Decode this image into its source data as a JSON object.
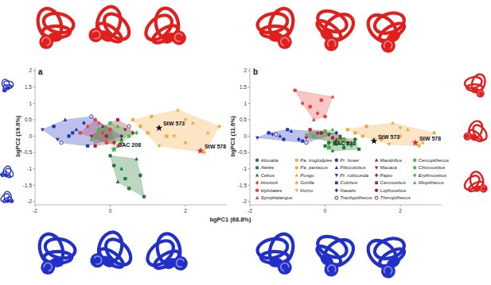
{
  "chart_data": [
    {
      "type": "scatter",
      "title": "a",
      "xlabel": "bgPC1 (68.8%)",
      "ylabel": "bgPC2 (19.6%)",
      "xlim": [
        -2,
        3.1
      ],
      "ylim": [
        -2.1,
        2.1
      ],
      "xticks": [
        -2,
        0,
        2
      ],
      "yticks": [
        -2,
        -1.5,
        -1,
        -0.5,
        0,
        0.5,
        1,
        1.5,
        2
      ],
      "series": [
        {
          "name": "Alouatta",
          "color": "#1e7a32",
          "marker": "circle",
          "x": [
            0.1,
            0.5,
            0.8
          ],
          "values": [
            -0.9,
            -1.6,
            -1.2
          ]
        },
        {
          "name": "Ateles",
          "color": "#1e7a32",
          "marker": "square",
          "x": [
            0.0,
            0.4,
            0.9
          ],
          "values": [
            -0.6,
            -1.3,
            -1.85
          ]
        },
        {
          "name": "Cebus",
          "color": "#1e7a32",
          "marker": "triangle",
          "x": [
            0.3,
            0.7,
            0.2
          ],
          "values": [
            -1.0,
            -0.7,
            -1.4
          ]
        },
        {
          "name": "Hoolock",
          "color": "#e8413c",
          "marker": "diamond",
          "x": [
            -0.6,
            -0.2
          ],
          "values": [
            0.3,
            0.1
          ]
        },
        {
          "name": "Hylobates",
          "color": "#e8413c",
          "marker": "circle",
          "x": [
            -0.8,
            -0.4,
            0.0,
            -0.1
          ],
          "values": [
            0.1,
            0.5,
            0.2,
            -0.2
          ]
        },
        {
          "name": "Symphalangus",
          "color": "#e8413c",
          "marker": "triangle",
          "x": [
            -0.3,
            0.2
          ],
          "values": [
            0.4,
            -0.3
          ]
        },
        {
          "name": "Pa. troglodytes",
          "color": "#f2a93b",
          "marker": "circle",
          "x": [
            0.8,
            1.1,
            1.5
          ],
          "values": [
            0.3,
            0.6,
            0.0
          ]
        },
        {
          "name": "Pa. paniscus",
          "color": "#f2a93b",
          "marker": "square",
          "x": [
            0.6,
            1.0
          ],
          "values": [
            0.5,
            0.1
          ]
        },
        {
          "name": "Pongo",
          "color": "#f2a93b",
          "marker": "triangle",
          "x": [
            1.8,
            2.2,
            2.6
          ],
          "values": [
            0.8,
            0.4,
            0.1
          ]
        },
        {
          "name": "Gorilla",
          "color": "#f2a93b",
          "marker": "diamond",
          "x": [
            2.0,
            2.5,
            2.9
          ],
          "values": [
            -0.2,
            -0.5,
            0.3
          ]
        },
        {
          "name": "Homo",
          "color": "#f2a93b",
          "marker": "triangle-down",
          "x": [
            1.3,
            1.7,
            2.0
          ],
          "values": [
            -0.3,
            0.0,
            0.5
          ]
        },
        {
          "name": "Pr. hosei",
          "color": "#2336b8",
          "marker": "circle",
          "x": [
            -1.5,
            -1.1
          ],
          "values": [
            0.3,
            0.0
          ]
        },
        {
          "name": "Piliocolobus",
          "color": "#2336b8",
          "marker": "triangle",
          "x": [
            -1.2,
            -0.9
          ],
          "values": [
            0.5,
            0.2
          ]
        },
        {
          "name": "Pr. rubicunda",
          "color": "#2336b8",
          "marker": "triangle-down",
          "x": [
            -1.8,
            -1.4
          ],
          "values": [
            0.2,
            -0.1
          ]
        },
        {
          "name": "Colobus",
          "color": "#2336b8",
          "marker": "square",
          "x": [
            -1.0,
            -0.6
          ],
          "values": [
            0.1,
            -0.3
          ]
        },
        {
          "name": "Nasalis",
          "color": "#2336b8",
          "marker": "diamond",
          "x": [
            -0.7,
            0.3
          ],
          "values": [
            0.4,
            0.0
          ]
        },
        {
          "name": "Trachypithecus",
          "color": "#2336b8",
          "marker": "circle-open",
          "x": [
            -1.3,
            -0.5
          ],
          "values": [
            -0.2,
            0.6
          ]
        },
        {
          "name": "Mandrillus",
          "color": "#9c2a3f",
          "marker": "triangle",
          "x": [
            -0.2,
            0.3
          ],
          "values": [
            0.3,
            -0.1
          ]
        },
        {
          "name": "Macaca",
          "color": "#9c2a3f",
          "marker": "triangle-down",
          "x": [
            -0.5,
            0.0,
            0.4
          ],
          "values": [
            0.0,
            0.4,
            0.2
          ]
        },
        {
          "name": "Papio",
          "color": "#9c2a3f",
          "marker": "diamond",
          "x": [
            0.1,
            0.6
          ],
          "values": [
            -0.2,
            0.1
          ]
        },
        {
          "name": "Cercocebus",
          "color": "#9c2a3f",
          "marker": "square",
          "x": [
            -0.4,
            0.2
          ],
          "values": [
            -0.3,
            0.5
          ]
        },
        {
          "name": "Lophocebus",
          "color": "#9c2a3f",
          "marker": "circle",
          "x": [
            -0.1
          ],
          "values": [
            0.0
          ]
        },
        {
          "name": "Theropithecus",
          "color": "#9c2a3f",
          "marker": "circle-open",
          "x": [
            0.5
          ],
          "values": [
            0.3
          ]
        },
        {
          "name": "Cercopithecus",
          "color": "#3fbf4a",
          "marker": "circle",
          "x": [
            -0.3,
            0.3
          ],
          "values": [
            0.2,
            -0.2
          ]
        },
        {
          "name": "Chlorocebus",
          "color": "#3fbf4a",
          "marker": "square",
          "x": [
            0.0,
            0.5
          ],
          "values": [
            0.4,
            0.0
          ]
        },
        {
          "name": "Erythrocebus",
          "color": "#3fbf4a",
          "marker": "diamond",
          "x": [
            0.7
          ],
          "values": [
            0.1
          ]
        },
        {
          "name": "Miopithecus",
          "color": "#3fbf4a",
          "marker": "triangle",
          "x": [
            -0.5,
            0.2
          ],
          "values": [
            -0.1,
            0.3
          ]
        },
        {
          "name": "StW 573",
          "color": "#111111",
          "marker": "star",
          "x": [
            1.3
          ],
          "values": [
            0.25
          ]
        },
        {
          "name": "StW 578",
          "color": "#e0302a",
          "marker": "star",
          "x": [
            2.4
          ],
          "values": [
            -0.45
          ]
        },
        {
          "name": "BAC 208",
          "color": "#2db84a",
          "marker": "star",
          "x": [
            0.1
          ],
          "values": [
            -0.4
          ]
        }
      ]
    },
    {
      "type": "scatter",
      "title": "b",
      "ylabel": "bgPC3 (11.6%)",
      "legend": "lower right",
      "xlim": [
        -2,
        3.1
      ],
      "ylim": [
        -2.1,
        2.1
      ],
      "xticks": [
        -2,
        0,
        2
      ],
      "yticks": [
        -2,
        -1.5,
        -1,
        -0.5,
        0,
        0.5,
        1,
        1.5,
        2
      ],
      "series": [
        {
          "x": [
            0.1,
            0.5,
            0.8
          ],
          "values": [
            -0.2,
            -0.35,
            -0.1
          ]
        },
        {
          "x": [
            0.0,
            0.4,
            0.9
          ],
          "values": [
            -0.3,
            -0.05,
            -0.4
          ]
        },
        {
          "x": [
            0.3,
            0.7,
            0.2
          ],
          "values": [
            -0.15,
            -0.25,
            -0.45
          ]
        },
        {
          "x": [
            -0.6,
            -0.2
          ],
          "values": [
            1.0,
            0.7
          ]
        },
        {
          "x": [
            -0.8,
            -0.4,
            0.0,
            -0.1
          ],
          "values": [
            1.4,
            0.9,
            0.6,
            1.1
          ]
        },
        {
          "x": [
            -0.3,
            0.2
          ],
          "values": [
            0.5,
            1.2
          ]
        },
        {
          "x": [
            0.8,
            1.1,
            1.5
          ],
          "values": [
            0.1,
            0.3,
            -0.1
          ]
        },
        {
          "x": [
            0.6,
            1.0
          ],
          "values": [
            0.2,
            0.0
          ]
        },
        {
          "x": [
            1.8,
            2.2,
            2.6
          ],
          "values": [
            0.4,
            0.2,
            -0.2
          ]
        },
        {
          "x": [
            2.0,
            2.5,
            2.9
          ],
          "values": [
            0.0,
            -0.3,
            0.1
          ]
        },
        {
          "x": [
            1.3,
            1.7,
            2.0
          ],
          "values": [
            -0.1,
            -0.25,
            0.25
          ]
        },
        {
          "x": [
            -1.5,
            -1.1
          ],
          "values": [
            0.1,
            -0.1
          ]
        },
        {
          "x": [
            -1.2,
            -0.9
          ],
          "values": [
            0.0,
            0.15
          ]
        },
        {
          "x": [
            -1.8,
            -1.4
          ],
          "values": [
            -0.05,
            0.05
          ]
        },
        {
          "x": [
            -1.0,
            -0.6
          ],
          "values": [
            0.2,
            -0.15
          ]
        },
        {
          "x": [
            -0.7,
            0.3
          ],
          "values": [
            -0.1,
            0.1
          ]
        },
        {
          "x": [
            -1.3,
            -0.5
          ],
          "values": [
            0.05,
            -0.2
          ]
        },
        {
          "x": [
            -0.2,
            0.3
          ],
          "values": [
            0.1,
            -0.1
          ]
        },
        {
          "x": [
            -0.5,
            0.0,
            0.4
          ],
          "values": [
            -0.05,
            0.15,
            0.0
          ]
        },
        {
          "x": [
            0.1,
            0.6
          ],
          "values": [
            0.05,
            -0.2
          ]
        },
        {
          "x": [
            -0.4,
            0.2
          ],
          "values": [
            0.2,
            -0.05
          ]
        },
        {
          "x": [
            -0.1
          ],
          "values": [
            0.1
          ]
        },
        {
          "x": [
            0.5
          ],
          "values": [
            -0.1
          ]
        },
        {
          "x": [
            -0.3,
            0.3
          ],
          "values": [
            0.0,
            -0.25
          ]
        },
        {
          "x": [
            0.0,
            0.5
          ],
          "values": [
            0.15,
            -0.1
          ]
        },
        {
          "x": [
            0.7
          ],
          "values": [
            -0.3
          ]
        },
        {
          "x": [
            -0.5,
            0.2
          ],
          "values": [
            0.05,
            0.2
          ]
        },
        {
          "x": [
            1.3
          ],
          "values": [
            -0.15
          ]
        },
        {
          "x": [
            2.4
          ],
          "values": [
            -0.2
          ]
        },
        {
          "x": [
            0.1
          ],
          "values": [
            -0.35
          ]
        }
      ]
    }
  ]
}
